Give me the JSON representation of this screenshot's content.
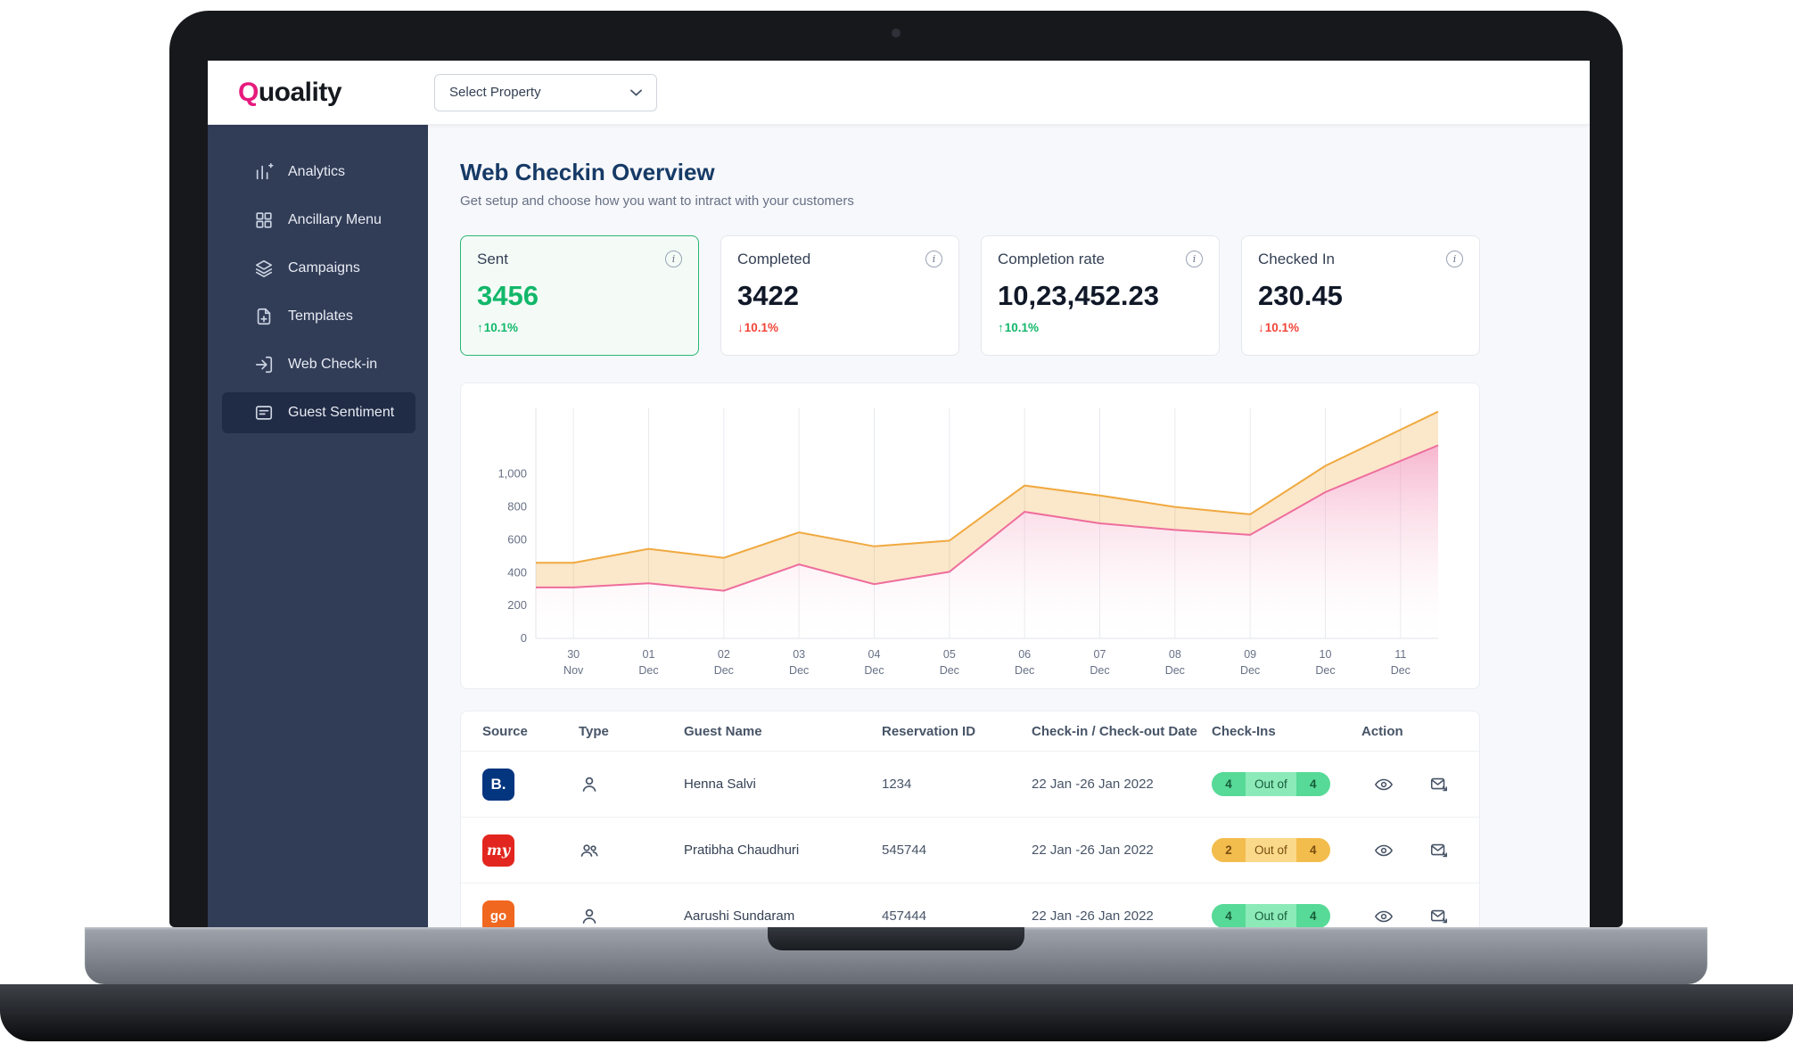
{
  "topbar": {
    "logo_q": "Q",
    "logo_rest": "uoality",
    "property_selector": "Select Property"
  },
  "sidebar": {
    "items": [
      {
        "label": "Analytics",
        "active": false
      },
      {
        "label": "Ancillary Menu",
        "active": false
      },
      {
        "label": "Campaigns",
        "active": false
      },
      {
        "label": "Templates",
        "active": false
      },
      {
        "label": "Web Check-in",
        "active": false
      },
      {
        "label": "Guest Sentiment",
        "active": true
      }
    ]
  },
  "page": {
    "title": "Web Checkin Overview",
    "subtitle": "Get setup and choose how you want to intract with your customers"
  },
  "stats": [
    {
      "label": "Sent",
      "value": "3456",
      "delta": "10.1%",
      "direction": "up",
      "selected": true
    },
    {
      "label": "Completed",
      "value": "3422",
      "delta": "10.1%",
      "direction": "down",
      "selected": false
    },
    {
      "label": "Completion rate",
      "value": "10,23,452.23",
      "delta": "10.1%",
      "direction": "up",
      "selected": false
    },
    {
      "label": "Checked In",
      "value": "230.45",
      "delta": "10.1%",
      "direction": "down",
      "selected": false
    }
  ],
  "chart_data": {
    "type": "area",
    "x": [
      "30 Nov",
      "01 Dec",
      "02 Dec",
      "03 Dec",
      "04 Dec",
      "05 Dec",
      "06 Dec",
      "07 Dec",
      "08 Dec",
      "09 Dec",
      "10 Dec",
      "11 Dec"
    ],
    "series": [
      {
        "name": "upper-band",
        "color": "#f0a93f",
        "values": [
          460,
          545,
          490,
          645,
          560,
          595,
          930,
          870,
          800,
          755,
          1050,
          1270
        ]
      },
      {
        "name": "lower-band",
        "color": "#ee6d9d",
        "values": [
          310,
          335,
          290,
          450,
          330,
          405,
          770,
          700,
          660,
          630,
          890,
          1080
        ]
      }
    ],
    "yticks": [
      0,
      200,
      400,
      600,
      800,
      1000
    ],
    "ymax_display": 1400,
    "grid": "vertical",
    "legend": "none"
  },
  "table": {
    "columns": [
      "Source",
      "Type",
      "Guest Name",
      "Reservation ID",
      "Check-in / Check-out Date",
      "Check-Ins",
      "Action"
    ],
    "badge_middle": "Out of",
    "rows": [
      {
        "source": "booking",
        "source_label": "B.",
        "type": "single",
        "guest": "Henna Salvi",
        "reservation_id": "1234",
        "dates": "22 Jan -26 Jan 2022",
        "checkins_done": "4",
        "checkins_total": "4",
        "badge": "green"
      },
      {
        "source": "makemytrip",
        "source_label": "my",
        "type": "group",
        "guest": "Pratibha Chaudhuri",
        "reservation_id": "545744",
        "dates": "22 Jan -26 Jan 2022",
        "checkins_done": "2",
        "checkins_total": "4",
        "badge": "amber"
      },
      {
        "source": "goibibo",
        "source_label": "go",
        "type": "single",
        "guest": "Aarushi Sundaram",
        "reservation_id": "457444",
        "dates": "22 Jan -26 Jan 2022",
        "checkins_done": "4",
        "checkins_total": "4",
        "badge": "green"
      }
    ]
  }
}
